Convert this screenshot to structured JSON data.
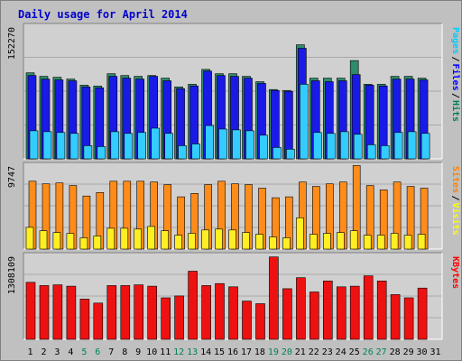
{
  "chart_data": {
    "title": "Daily usage for April 2014",
    "type": "bar",
    "days": [
      "1",
      "2",
      "3",
      "4",
      "5",
      "6",
      "7",
      "8",
      "9",
      "10",
      "11",
      "12",
      "13",
      "14",
      "15",
      "16",
      "17",
      "18",
      "19",
      "20",
      "21",
      "22",
      "23",
      "24",
      "25",
      "26",
      "27",
      "28",
      "29",
      "30",
      "31"
    ],
    "weekend_days": [
      "5",
      "6",
      "12",
      "13",
      "19",
      "20",
      "26",
      "27"
    ],
    "panels": [
      {
        "id": "top",
        "max_label": "152270",
        "ymax": 152270,
        "legend": [
          "Pages",
          "Files",
          "Hits"
        ],
        "legend_colors": [
          "#00ccff",
          "#0000ff",
          "#00805c"
        ],
        "series": [
          {
            "name": "Hits",
            "color": "#2e8b6b",
            "values": [
              98000,
              94000,
              93000,
              91000,
              84000,
              83000,
              97000,
              95000,
              94000,
              95000,
              92000,
              82000,
              85000,
              102000,
              97000,
              97000,
              94000,
              88000,
              79000,
              78000,
              130000,
              92000,
              92000,
              92000,
              112000,
              85000,
              85000,
              94000,
              94000,
              92000,
              0
            ]
          },
          {
            "name": "Files",
            "color": "#1a1ae6",
            "values": [
              95000,
              91000,
              90000,
              89000,
              82000,
              81000,
              94000,
              92000,
              91000,
              94000,
              89000,
              80000,
              83000,
              100000,
              95000,
              94000,
              92000,
              86000,
              78000,
              77000,
              126000,
              89000,
              88000,
              89000,
              96000,
              84000,
              83000,
              91000,
              91000,
              90000,
              0
            ]
          },
          {
            "name": "Pages",
            "color": "#33ccff",
            "values": [
              32000,
              31000,
              30000,
              29000,
              15000,
              14000,
              31000,
              29000,
              30000,
              35000,
              29000,
              15000,
              17000,
              38000,
              34000,
              33000,
              32000,
              27000,
              13000,
              11000,
              85000,
              30000,
              29000,
              31000,
              28000,
              16000,
              15000,
              30000,
              31000,
              29000,
              0
            ]
          }
        ]
      },
      {
        "id": "middle",
        "max_label": "9747",
        "ymax": 9747,
        "legend": [
          "Sites",
          "Visits"
        ],
        "legend_colors": [
          "#ff8000",
          "#ffff00"
        ],
        "series": [
          {
            "name": "Visits",
            "color": "#ff8c1a",
            "values": [
              7800,
              7500,
              7600,
              7300,
              6100,
              6500,
              7800,
              7800,
              7800,
              7700,
              7400,
              6000,
              6400,
              7400,
              7800,
              7500,
              7400,
              7000,
              5900,
              6000,
              7700,
              7200,
              7500,
              7700,
              9600,
              7300,
              6800,
              7700,
              7200,
              7000,
              0
            ]
          },
          {
            "name": "Sites",
            "color": "#ffee22",
            "values": [
              2500,
              2100,
              1900,
              1800,
              1300,
              1500,
              2400,
              2400,
              2300,
              2600,
              2100,
              1600,
              1800,
              2200,
              2300,
              2200,
              1900,
              1700,
              1400,
              1300,
              3600,
              1700,
              1800,
              1900,
              2100,
              1600,
              1600,
              1800,
              1600,
              1700,
              0
            ]
          }
        ]
      },
      {
        "id": "bottom",
        "max_label": "1308109",
        "ymax": 1308109,
        "legend": [
          "KBytes"
        ],
        "legend_colors": [
          "#ff0000"
        ],
        "series": [
          {
            "name": "KBytes",
            "color": "#ee1111",
            "values": [
              880000,
              830000,
              840000,
              820000,
              620000,
              560000,
              830000,
              830000,
              840000,
              820000,
              640000,
              670000,
              1050000,
              830000,
              860000,
              810000,
              590000,
              550000,
              1270000,
              780000,
              950000,
              730000,
              900000,
              810000,
              820000,
              980000,
              900000,
              690000,
              640000,
              790000,
              0
            ]
          }
        ]
      }
    ]
  }
}
